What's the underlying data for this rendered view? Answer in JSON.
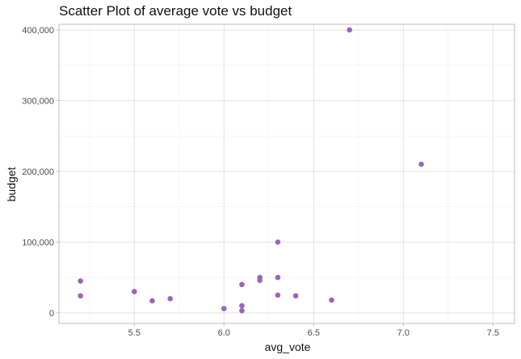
{
  "chart_data": {
    "type": "scatter",
    "title": "Scatter Plot of average vote vs budget",
    "xlabel": "avg_vote",
    "ylabel": "budget",
    "xlim": [
      5.08,
      7.62
    ],
    "ylim": [
      -15000,
      408000
    ],
    "x_ticks": [
      {
        "value": 5.5,
        "label": "5.5"
      },
      {
        "value": 6.0,
        "label": "6.0"
      },
      {
        "value": 6.5,
        "label": "6.5"
      },
      {
        "value": 7.0,
        "label": "7.0"
      },
      {
        "value": 7.5,
        "label": "7.5"
      }
    ],
    "y_ticks": [
      {
        "value": 0,
        "label": "0"
      },
      {
        "value": 100000,
        "label": "100,000"
      },
      {
        "value": 200000,
        "label": "200,000"
      },
      {
        "value": 300000,
        "label": "300,000"
      },
      {
        "value": 400000,
        "label": "400,000"
      }
    ],
    "grid": true,
    "point_color": "#9966b8",
    "points": [
      {
        "x": 5.2,
        "y": 45000
      },
      {
        "x": 5.2,
        "y": 24000
      },
      {
        "x": 5.5,
        "y": 30000
      },
      {
        "x": 5.6,
        "y": 17000
      },
      {
        "x": 5.7,
        "y": 20000
      },
      {
        "x": 6.0,
        "y": 6000
      },
      {
        "x": 6.1,
        "y": 40000
      },
      {
        "x": 6.1,
        "y": 10000
      },
      {
        "x": 6.1,
        "y": 3000
      },
      {
        "x": 6.2,
        "y": 50000
      },
      {
        "x": 6.2,
        "y": 46000
      },
      {
        "x": 6.3,
        "y": 100000
      },
      {
        "x": 6.3,
        "y": 50000
      },
      {
        "x": 6.3,
        "y": 25000
      },
      {
        "x": 6.4,
        "y": 24000
      },
      {
        "x": 6.6,
        "y": 18000
      },
      {
        "x": 6.7,
        "y": 400000
      },
      {
        "x": 7.1,
        "y": 210000
      }
    ]
  }
}
